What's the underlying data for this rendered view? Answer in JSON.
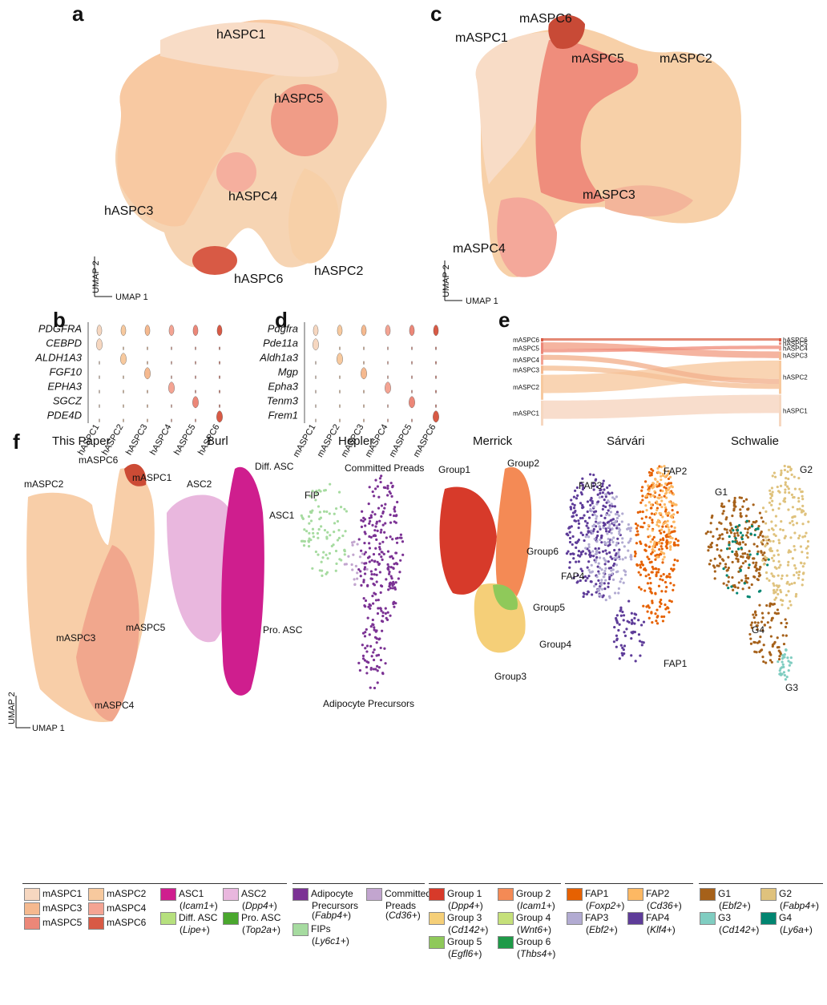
{
  "panels": {
    "a": "a",
    "b": "b",
    "c": "c",
    "d": "d",
    "e": "e",
    "f": "f"
  },
  "axes": {
    "umap1": "UMAP 1",
    "umap2": "UMAP 2"
  },
  "colors": {
    "c1": "#f6d7c0",
    "c2": "#f7c99e",
    "c3": "#f5b98f",
    "c4": "#f4a493",
    "c5": "#ec8778",
    "c6": "#d85a45"
  },
  "a": {
    "labels": [
      "hASPC1",
      "hASPC5",
      "hASPC4",
      "hASPC3",
      "hASPC6",
      "hASPC2"
    ]
  },
  "c": {
    "labels": [
      "mASPC6",
      "mASPC1",
      "mASPC5",
      "mASPC2",
      "mASPC3",
      "mASPC4"
    ]
  },
  "b": {
    "genes": [
      "PDGFRA",
      "CEBPD",
      "ALDH1A3",
      "FGF10",
      "EPHA3",
      "SGCZ",
      "PDE4D"
    ],
    "clusters": [
      "hASPC1",
      "hASPC2",
      "hASPC3",
      "hASPC4",
      "hASPC5",
      "hASPC6"
    ]
  },
  "d": {
    "genes": [
      "Pdgfra",
      "Pde11a",
      "Aldh1a3",
      "Mgp",
      "Epha3",
      "Tenm3",
      "Frem1"
    ],
    "clusters": [
      "mASPC1",
      "mASPC2",
      "mASPC3",
      "mASPC4",
      "mASPC5",
      "mASPC6"
    ]
  },
  "e": {
    "left": [
      "mASPC6",
      "mASPC5",
      "mASPC4",
      "mASPC3",
      "mASPC2",
      "mASPC1"
    ],
    "right": [
      "hASPC6",
      "hASPC5",
      "hASPC4",
      "hASPC3",
      "hASPC2",
      "hASPC1"
    ]
  },
  "f": {
    "titles": [
      "This Paper",
      "Burl",
      "Hepler",
      "Merrick",
      "Sárvári",
      "Schwalie"
    ],
    "this_labels": [
      "mASPC6",
      "mASPC1",
      "mASPC2",
      "mASPC3",
      "mASPC5",
      "mASPC4"
    ],
    "burl_labels": [
      "Diff. ASC",
      "ASC2",
      "ASC1",
      "Pro. ASC"
    ],
    "hepler_labels": [
      "Committed Preads",
      "FIP",
      "Adipocyte Precursors"
    ],
    "merrick_labels": [
      "Group2",
      "Group1",
      "Group6",
      "Group5",
      "Group4",
      "Group3"
    ],
    "sarvari_labels": [
      "FAP2",
      "FAP3",
      "FAP4",
      "FAP1"
    ],
    "schwalie_labels": [
      "G2",
      "G1",
      "G4",
      "G3"
    ],
    "legend_this": [
      "mASPC1",
      "mASPC2",
      "mASPC3",
      "mASPC4",
      "mASPC5",
      "mASPC6"
    ],
    "legend_burl": [
      [
        "ASC1",
        "Icam1+"
      ],
      [
        "ASC2",
        "Dpp4+"
      ],
      [
        "Diff. ASC",
        "Lipe+"
      ],
      [
        "Pro. ASC",
        "Top2a+"
      ]
    ],
    "legend_hepler": [
      [
        "Adipocyte Precursors",
        "Fabp4+"
      ],
      [
        "Committed Preads",
        "Cd36+"
      ],
      [
        "FIPs",
        "Ly6c1+"
      ]
    ],
    "legend_merrick": [
      [
        "Group 1",
        "Dpp4+"
      ],
      [
        "Group 2",
        "Icam1+"
      ],
      [
        "Group 3",
        "Cd142+"
      ],
      [
        "Group 4",
        "Wnt6+"
      ],
      [
        "Group 5",
        "Egfl6+"
      ],
      [
        "Group 6",
        "Thbs4+"
      ]
    ],
    "legend_sarvari": [
      [
        "FAP1",
        "Foxp2+"
      ],
      [
        "FAP2",
        "Cd36+"
      ],
      [
        "FAP3",
        "Ebf2+"
      ],
      [
        "FAP4",
        "Klf4+"
      ]
    ],
    "legend_schwalie": [
      [
        "G1",
        "Ebf2+"
      ],
      [
        "G2",
        "Fabp4+"
      ],
      [
        "G3",
        "Cd142+"
      ],
      [
        "G4",
        "Ly6a+"
      ]
    ]
  }
}
